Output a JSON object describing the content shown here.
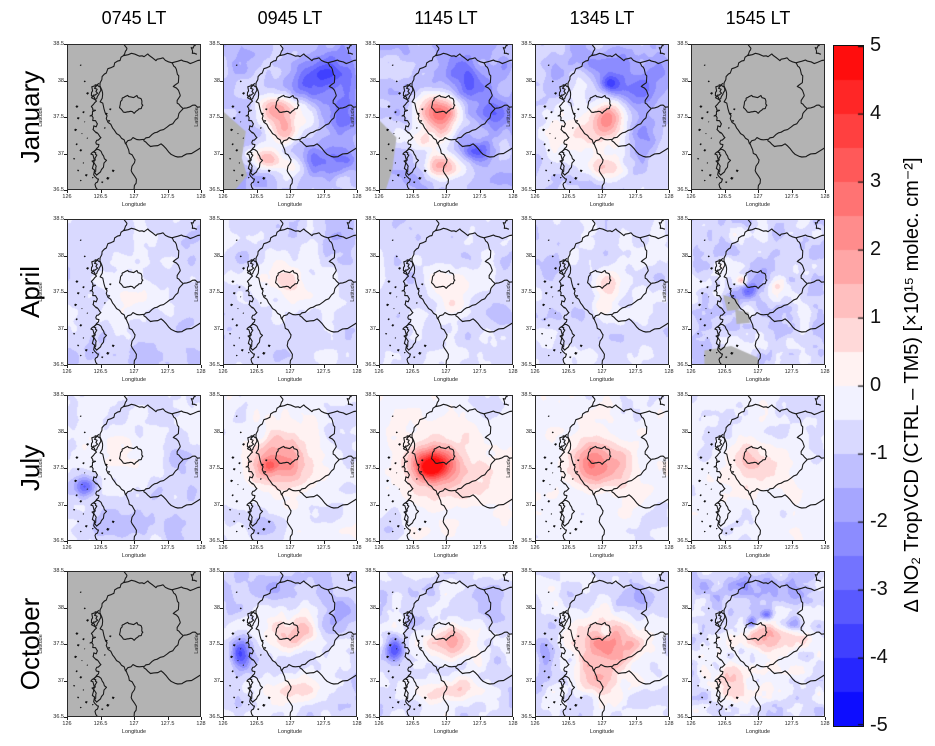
{
  "chart_data": {
    "type": "heatmap",
    "title": "",
    "columns": [
      "0745 LT",
      "0945 LT",
      "1145 LT",
      "1345 LT",
      "1545 LT"
    ],
    "rows": [
      "January",
      "April",
      "July",
      "October"
    ],
    "value_label": "Δ NO₂ TropVCD (CTRL – TM5) [×10¹⁵ molec. cm⁻²]",
    "axes": {
      "x_label": "Longitude",
      "y_label": "Latitude",
      "x_ticks": [
        "126",
        "126.5",
        "127",
        "127.5",
        "128"
      ],
      "y_ticks": [
        "38.5",
        "38",
        "37.5",
        "37",
        "36.5"
      ],
      "x_range": [
        126,
        128
      ],
      "y_range": [
        36.5,
        38.5
      ]
    },
    "colorbar": {
      "min": -5,
      "max": 5,
      "step": 0.5,
      "ticks": [
        "5",
        "4",
        "3",
        "2",
        "1",
        "0",
        "-1",
        "-2",
        "-3",
        "-4",
        "-5"
      ],
      "positive_color": "#FF0000",
      "negative_color": "#0000FF",
      "zero_color": "#FFFFFF",
      "nodata_color": "#B3B3B3"
    },
    "panels": [
      {
        "month": "January",
        "time": "0745 LT",
        "status": "no-data"
      },
      {
        "month": "January",
        "time": "0945 LT",
        "status": "data",
        "base": -1.3,
        "noise": [
          0.9,
          6.5,
          11
        ],
        "blobs": [
          [
            0.42,
            0.45,
            0.1,
            0.07,
            2.8
          ],
          [
            0.46,
            0.6,
            0.07,
            0.05,
            1.6
          ],
          [
            0.33,
            0.78,
            0.08,
            0.06,
            3.0
          ],
          [
            0.52,
            0.82,
            0.07,
            0.05,
            1.8
          ],
          [
            0.52,
            0.52,
            0.2,
            0.13,
            0.9
          ],
          [
            0.75,
            0.22,
            0.13,
            0.1,
            -1.6
          ],
          [
            0.88,
            0.52,
            0.09,
            0.1,
            -1.2
          ],
          [
            0.76,
            0.8,
            0.11,
            0.07,
            -1.5
          ],
          [
            0.58,
            0.3,
            0.1,
            0.08,
            -1.0
          ]
        ],
        "gray": [
          [
            [
              0,
              0.46
            ],
            [
              0.17,
              0.6
            ],
            [
              0.14,
              0.78
            ],
            [
              0.18,
              0.9
            ],
            [
              0.09,
              1
            ],
            [
              0,
              1
            ]
          ]
        ]
      },
      {
        "month": "January",
        "time": "1145 LT",
        "status": "data",
        "base": -1.2,
        "noise": [
          0.9,
          6.5,
          23
        ],
        "blobs": [
          [
            0.45,
            0.5,
            0.11,
            0.09,
            3.2
          ],
          [
            0.47,
            0.83,
            0.11,
            0.06,
            2.4
          ],
          [
            0.3,
            0.66,
            0.07,
            0.05,
            1.8
          ],
          [
            0.47,
            0.38,
            0.16,
            0.08,
            1.2
          ],
          [
            0.7,
            0.28,
            0.12,
            0.09,
            -1.8
          ],
          [
            0.87,
            0.5,
            0.09,
            0.11,
            -1.6
          ],
          [
            0.73,
            0.73,
            0.07,
            0.05,
            -1.9
          ],
          [
            0.55,
            0.15,
            0.2,
            0.08,
            -0.8
          ]
        ],
        "gray": [
          [
            [
              0,
              0.52
            ],
            [
              0.13,
              0.64
            ],
            [
              0.1,
              0.86
            ],
            [
              0.05,
              1
            ],
            [
              0,
              1
            ]
          ]
        ]
      },
      {
        "month": "January",
        "time": "1345 LT",
        "status": "data",
        "base": -0.9,
        "noise": [
          0.8,
          6.5,
          37
        ],
        "blobs": [
          [
            0.53,
            0.5,
            0.1,
            0.08,
            3.4
          ],
          [
            0.5,
            0.63,
            0.14,
            0.07,
            1.4
          ],
          [
            0.5,
            0.86,
            0.09,
            0.05,
            2.0
          ],
          [
            0.17,
            0.55,
            0.12,
            0.14,
            0.8
          ],
          [
            0.56,
            0.27,
            0.06,
            0.05,
            -2.2
          ],
          [
            0.5,
            0.12,
            0.3,
            0.08,
            -1.0
          ],
          [
            0.8,
            0.3,
            0.11,
            0.09,
            -1.4
          ],
          [
            0.83,
            0.62,
            0.09,
            0.07,
            -1.2
          ]
        ]
      },
      {
        "month": "January",
        "time": "1545 LT",
        "status": "no-data"
      },
      {
        "month": "April",
        "time": "0745 LT",
        "status": "data",
        "base": -0.75,
        "noise": [
          0.5,
          7.5,
          41
        ],
        "blobs": [
          [
            0.5,
            0.5,
            0.16,
            0.12,
            0.9
          ],
          [
            0.53,
            0.53,
            0.04,
            0.03,
            0.5
          ],
          [
            0.88,
            0.72,
            0.06,
            0.05,
            -0.8
          ],
          [
            0.4,
            0.93,
            0.3,
            0.07,
            -0.4
          ]
        ]
      },
      {
        "month": "April",
        "time": "0945 LT",
        "status": "data",
        "base": -0.7,
        "noise": [
          0.5,
          7.5,
          43
        ],
        "blobs": [
          [
            0.5,
            0.45,
            0.17,
            0.13,
            0.9
          ],
          [
            0.46,
            0.42,
            0.06,
            0.05,
            0.6
          ],
          [
            0.88,
            0.12,
            0.1,
            0.08,
            -0.5
          ]
        ]
      },
      {
        "month": "April",
        "time": "1145 LT",
        "status": "data",
        "base": -0.7,
        "noise": [
          0.5,
          7.5,
          47
        ],
        "blobs": [
          [
            0.52,
            0.46,
            0.12,
            0.1,
            1.3
          ],
          [
            0.56,
            0.58,
            0.05,
            0.04,
            0.7
          ],
          [
            0.85,
            0.66,
            0.07,
            0.06,
            -0.7
          ]
        ]
      },
      {
        "month": "April",
        "time": "1345 LT",
        "status": "data",
        "base": -0.65,
        "noise": [
          0.5,
          7.5,
          53
        ],
        "blobs": [
          [
            0.55,
            0.45,
            0.1,
            0.08,
            1.2
          ],
          [
            0.5,
            0.6,
            0.06,
            0.05,
            0.7
          ],
          [
            0.12,
            0.3,
            0.07,
            0.06,
            -0.6
          ]
        ]
      },
      {
        "month": "April",
        "time": "1545 LT",
        "status": "data",
        "base": -0.7,
        "noise": [
          0.85,
          9.5,
          59
        ],
        "blobs": [
          [
            0.38,
            0.42,
            0.03,
            0.025,
            2.4
          ],
          [
            0.43,
            0.48,
            0.05,
            0.04,
            -1.7
          ],
          [
            0.3,
            0.55,
            0.05,
            0.04,
            -1.3
          ],
          [
            0.55,
            0.33,
            0.08,
            0.06,
            -0.9
          ],
          [
            0.66,
            0.45,
            0.06,
            0.05,
            0.8
          ],
          [
            0.8,
            0.55,
            0.06,
            0.05,
            0.6
          ]
        ],
        "gray": [
          [
            [
              0.24,
              0.52
            ],
            [
              0.35,
              0.55
            ],
            [
              0.36,
              0.62
            ],
            [
              0.27,
              0.63
            ]
          ],
          [
            [
              0.33,
              0.62
            ],
            [
              0.43,
              0.64
            ],
            [
              0.44,
              0.71
            ],
            [
              0.34,
              0.72
            ]
          ],
          [
            [
              0.1,
              0.9
            ],
            [
              0.3,
              0.87
            ],
            [
              0.5,
              0.95
            ],
            [
              0.5,
              1
            ],
            [
              0.1,
              1
            ]
          ]
        ]
      },
      {
        "month": "July",
        "time": "0745 LT",
        "status": "data",
        "base": -0.55,
        "noise": [
          0.55,
          7.5,
          61
        ],
        "blobs": [
          [
            0.38,
            0.38,
            0.14,
            0.1,
            1.0
          ],
          [
            0.13,
            0.62,
            0.055,
            0.045,
            -2.2
          ],
          [
            0.5,
            0.87,
            0.3,
            0.09,
            -0.7
          ],
          [
            0.86,
            0.5,
            0.09,
            0.14,
            -0.6
          ]
        ]
      },
      {
        "month": "July",
        "time": "0945 LT",
        "status": "data",
        "base": -0.35,
        "noise": [
          0.5,
          7.5,
          67
        ],
        "blobs": [
          [
            0.4,
            0.45,
            0.13,
            0.11,
            2.2
          ],
          [
            0.34,
            0.48,
            0.04,
            0.03,
            1.2
          ],
          [
            0.52,
            0.47,
            0.22,
            0.16,
            0.8
          ],
          [
            0.3,
            0.86,
            0.14,
            0.07,
            -0.8
          ],
          [
            0.93,
            0.42,
            0.06,
            0.1,
            -0.5
          ]
        ]
      },
      {
        "month": "July",
        "time": "1145 LT",
        "status": "data",
        "base": -0.25,
        "noise": [
          0.45,
          7.5,
          71
        ],
        "blobs": [
          [
            0.4,
            0.47,
            0.1,
            0.075,
            4.2
          ],
          [
            0.37,
            0.5,
            0.05,
            0.04,
            1.4
          ],
          [
            0.5,
            0.5,
            0.25,
            0.18,
            1.2
          ],
          [
            0.9,
            0.08,
            0.08,
            0.06,
            -0.6
          ],
          [
            0.08,
            0.9,
            0.08,
            0.06,
            -0.5
          ]
        ]
      },
      {
        "month": "July",
        "time": "1345 LT",
        "status": "data",
        "base": -0.3,
        "noise": [
          0.45,
          7.5,
          73
        ],
        "blobs": [
          [
            0.45,
            0.45,
            0.14,
            0.11,
            2.0
          ],
          [
            0.55,
            0.5,
            0.22,
            0.15,
            0.8
          ],
          [
            0.9,
            0.86,
            0.08,
            0.06,
            -0.5
          ]
        ]
      },
      {
        "month": "July",
        "time": "1545 LT",
        "status": "data",
        "base": -0.35,
        "noise": [
          0.45,
          7.5,
          79
        ],
        "blobs": [
          [
            0.46,
            0.45,
            0.13,
            0.1,
            1.1
          ],
          [
            0.55,
            0.52,
            0.2,
            0.14,
            0.5
          ],
          [
            0.1,
            0.4,
            0.05,
            0.05,
            -0.6
          ]
        ]
      },
      {
        "month": "October",
        "time": "0745 LT",
        "status": "no-data"
      },
      {
        "month": "October",
        "time": "0945 LT",
        "status": "data",
        "base": -0.6,
        "noise": [
          0.7,
          8,
          83
        ],
        "blobs": [
          [
            0.55,
            0.42,
            0.12,
            0.085,
            2.2
          ],
          [
            0.5,
            0.8,
            0.18,
            0.06,
            1.2
          ],
          [
            0.13,
            0.58,
            0.055,
            0.07,
            -3.0
          ],
          [
            0.84,
            0.3,
            0.12,
            0.1,
            -1.0
          ],
          [
            0.4,
            0.1,
            0.3,
            0.08,
            -0.8
          ]
        ]
      },
      {
        "month": "October",
        "time": "1145 LT",
        "status": "data",
        "base": -0.55,
        "noise": [
          0.7,
          8,
          89
        ],
        "blobs": [
          [
            0.55,
            0.48,
            0.11,
            0.09,
            2.6
          ],
          [
            0.5,
            0.82,
            0.2,
            0.06,
            1.6
          ],
          [
            0.11,
            0.55,
            0.05,
            0.06,
            -2.8
          ],
          [
            0.8,
            0.25,
            0.1,
            0.08,
            -0.9
          ],
          [
            0.25,
            0.35,
            0.05,
            0.04,
            -1.2
          ]
        ]
      },
      {
        "month": "October",
        "time": "1345 LT",
        "status": "data",
        "base": -0.5,
        "noise": [
          0.7,
          8,
          97
        ],
        "blobs": [
          [
            0.55,
            0.5,
            0.16,
            0.13,
            2.8
          ],
          [
            0.45,
            0.75,
            0.14,
            0.07,
            1.5
          ],
          [
            0.08,
            0.6,
            0.05,
            0.08,
            -1.8
          ],
          [
            0.8,
            0.2,
            0.1,
            0.07,
            -1.2
          ],
          [
            0.52,
            0.42,
            0.03,
            0.03,
            -1.6
          ]
        ]
      },
      {
        "month": "October",
        "time": "1545 LT",
        "status": "data",
        "base": -0.55,
        "noise": [
          0.85,
          10.5,
          101
        ],
        "blobs": [
          [
            0.6,
            0.45,
            0.15,
            0.08,
            2.2
          ],
          [
            0.3,
            0.75,
            0.1,
            0.07,
            1.6
          ],
          [
            0.62,
            0.8,
            0.12,
            0.06,
            1.2
          ],
          [
            0.5,
            0.12,
            0.3,
            0.08,
            -1.2
          ],
          [
            0.45,
            0.35,
            0.03,
            0.03,
            -2.4
          ],
          [
            0.56,
            0.3,
            0.03,
            0.025,
            -1.9
          ],
          [
            0.75,
            0.35,
            0.05,
            0.04,
            -1.7
          ]
        ]
      }
    ]
  }
}
